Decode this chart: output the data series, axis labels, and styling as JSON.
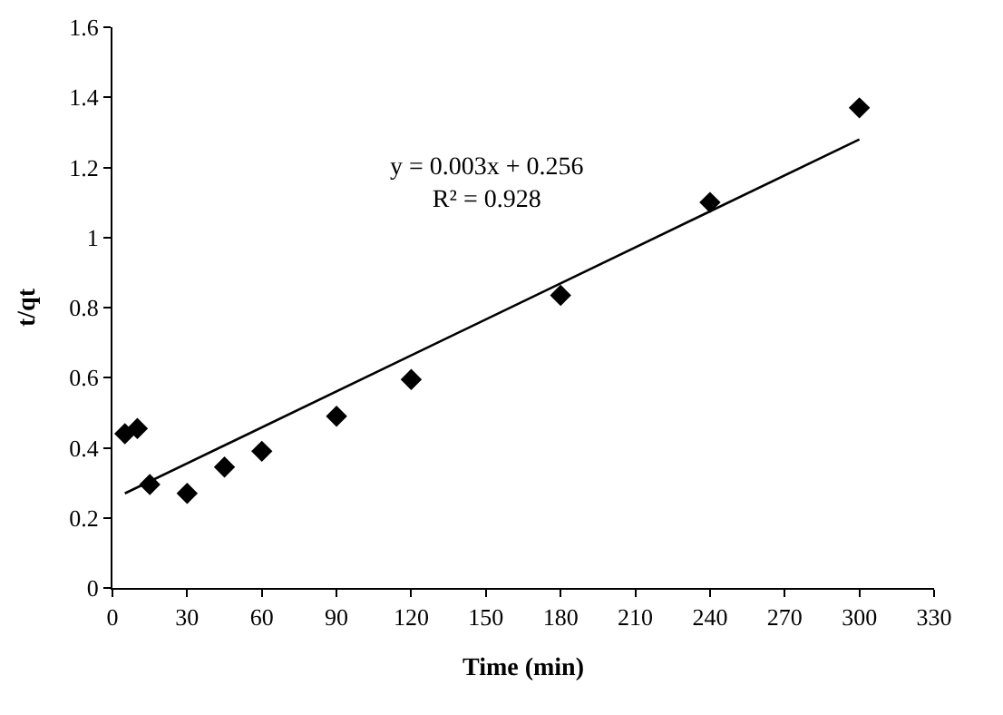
{
  "chart_data": {
    "type": "scatter",
    "xlabel": "Time (min)",
    "ylabel": "t/qt",
    "xlim": [
      0,
      330
    ],
    "xticks": [
      0,
      30,
      60,
      90,
      120,
      150,
      180,
      210,
      240,
      270,
      300,
      330
    ],
    "ylim": [
      0,
      1.6
    ],
    "yticks": [
      0,
      0.2,
      0.4,
      0.6,
      0.8,
      1,
      1.2,
      1.4,
      1.6
    ],
    "series": [
      {
        "marker": "diamond",
        "color": "#000000",
        "x": [
          5,
          10,
          15,
          30,
          45,
          60,
          90,
          120,
          180,
          240,
          300
        ],
        "values": [
          0.44,
          0.455,
          0.295,
          0.27,
          0.345,
          0.39,
          0.49,
          0.595,
          0.835,
          1.1,
          1.37
        ]
      },
      {
        "type": "line",
        "marker": "none",
        "line_style": "solid",
        "color": "#000000",
        "x": [
          5,
          300
        ],
        "values": [
          0.27,
          1.28
        ]
      }
    ],
    "annotations": [
      "y = 0.003x + 0.256\nR² = 0.928"
    ]
  }
}
